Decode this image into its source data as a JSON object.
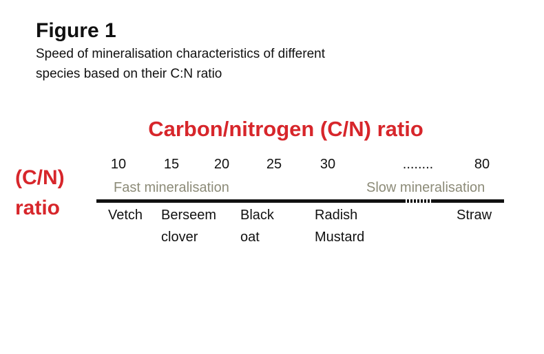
{
  "figure": {
    "title": "Figure 1",
    "subtitle": [
      "Speed of mineralisation characteristics of different",
      "species based on their C:N ratio"
    ],
    "heading": "Carbon/nitrogen (C/N) ratio",
    "side_label": [
      "(C/N)",
      "ratio"
    ],
    "scale": [
      "10",
      "15",
      "20",
      "25",
      "30",
      "........",
      "80"
    ],
    "fast_label": "Fast mineralisation",
    "slow_label": "Slow mineralisation",
    "species": [
      [
        "Vetch"
      ],
      [
        "Berseem",
        "clover"
      ],
      [
        "Black",
        "oat"
      ],
      [
        "Radish",
        "Mustard"
      ],
      [
        "Straw"
      ]
    ]
  }
}
